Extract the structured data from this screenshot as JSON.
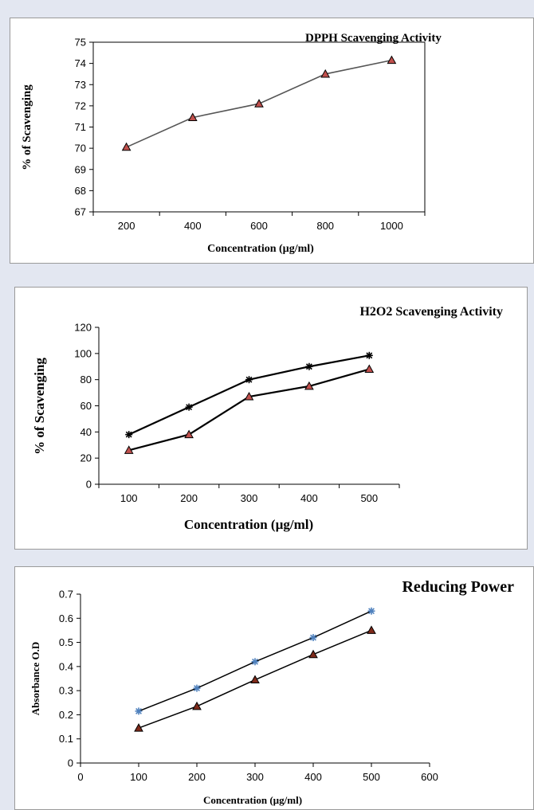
{
  "chart_data": [
    {
      "type": "line",
      "title": "DPPH Scavenging Activity",
      "xlabel": "Concentration (µg/ml)",
      "ylabel": "% of Scavenging",
      "categories": [
        "200",
        "400",
        "600",
        "800",
        "1000"
      ],
      "ylim": [
        67,
        75
      ],
      "yticks": [
        "67",
        "68",
        "69",
        "70",
        "71",
        "72",
        "73",
        "74",
        "75"
      ],
      "grid": false,
      "series": [
        {
          "values": [
            70.05,
            71.45,
            72.1,
            73.5,
            74.15
          ],
          "marker": "triangle",
          "color": "#c0504d",
          "line_color": "#555555"
        }
      ]
    },
    {
      "type": "line",
      "title": "H2O2 Scavenging Activity",
      "xlabel": "Concentration (µg/ml)",
      "ylabel": "% of Scavenging",
      "categories": [
        "100",
        "200",
        "300",
        "400",
        "500"
      ],
      "ylim": [
        0,
        120
      ],
      "yticks": [
        "0",
        "20",
        "40",
        "60",
        "80",
        "100",
        "120"
      ],
      "grid": false,
      "series": [
        {
          "values": [
            38,
            59,
            80,
            90,
            98.5
          ],
          "marker": "star",
          "color": "#000000",
          "line_color": "#000000"
        },
        {
          "values": [
            26,
            38,
            67,
            75,
            88
          ],
          "marker": "triangle",
          "color": "#c0504d",
          "line_color": "#000000"
        }
      ]
    },
    {
      "type": "scatter",
      "title": "Reducing  Power",
      "xlabel": "Concentration (µg/ml)",
      "ylabel": "Absorbance O.D",
      "xlim": [
        0,
        600
      ],
      "xticks": [
        "0",
        "100",
        "200",
        "300",
        "400",
        "500",
        "600"
      ],
      "ylim": [
        0,
        0.7
      ],
      "yticks": [
        "0",
        "0.1",
        "0.2",
        "0.3",
        "0.4",
        "0.5",
        "0.6",
        "0.7"
      ],
      "grid": false,
      "series": [
        {
          "x": [
            100,
            200,
            300,
            400,
            500
          ],
          "values": [
            0.215,
            0.31,
            0.42,
            0.52,
            0.63
          ],
          "marker": "star",
          "color": "#4f81bd",
          "line_color": "#000000"
        },
        {
          "x": [
            100,
            200,
            300,
            400,
            500
          ],
          "values": [
            0.145,
            0.235,
            0.345,
            0.45,
            0.55
          ],
          "marker": "triangle",
          "color": "#7f2a1a",
          "line_color": "#000000"
        }
      ]
    }
  ]
}
